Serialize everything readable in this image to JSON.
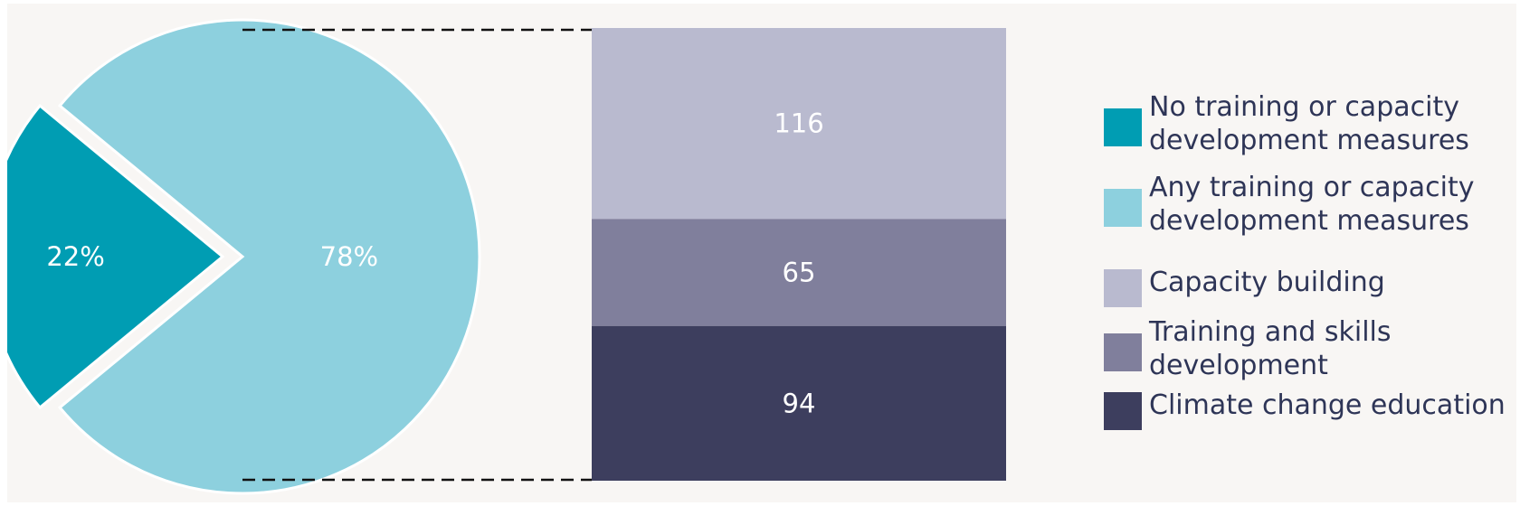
{
  "chart_data": [
    {
      "type": "pie",
      "slices": [
        {
          "label": "No training or capacity development measures",
          "value": 22,
          "display": "22%",
          "color": "#009db3"
        },
        {
          "label": "Any training or capacity development measures",
          "value": 78,
          "display": "78%",
          "color": "#8dd0de"
        }
      ]
    },
    {
      "type": "bar",
      "stacked": true,
      "categories": [
        "Any training or capacity development measures"
      ],
      "series": [
        {
          "name": "Capacity building",
          "values": [
            116
          ],
          "display": "116",
          "color": "#b9bacf"
        },
        {
          "name": "Training and skills development",
          "values": [
            65
          ],
          "display": "65",
          "color": "#807f9c"
        },
        {
          "name": "Climate change education",
          "values": [
            94
          ],
          "display": "94",
          "color": "#3d3e5e"
        }
      ]
    }
  ],
  "legend": [
    {
      "lines": [
        "No training or capacity",
        "development measures"
      ],
      "color": "#009db3"
    },
    {
      "lines": [
        "Any training or capacity",
        "development measures"
      ],
      "color": "#8dd0de"
    },
    {
      "lines": [
        "Capacity building"
      ],
      "color": "#b9bacf"
    },
    {
      "lines": [
        "Training and skills",
        "development"
      ],
      "color": "#807f9c"
    },
    {
      "lines": [
        "Climate change education"
      ],
      "color": "#3d3e5e"
    }
  ]
}
